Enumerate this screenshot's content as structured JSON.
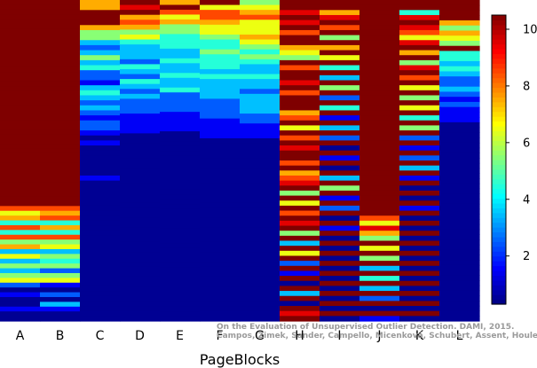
{
  "chart_data": {
    "type": "heatmap",
    "title": "",
    "xlabel": "PageBlocks",
    "ylabel": "",
    "columns": [
      "A",
      "B",
      "C",
      "D",
      "E",
      "F",
      "G",
      "H",
      "I",
      "J",
      "K",
      "L"
    ],
    "colorbar": {
      "vmin": 0.3,
      "vmax": 10.5,
      "ticks": [
        2,
        4,
        6,
        8,
        10
      ],
      "colormap": [
        "#00007f",
        "#0000ff",
        "#007fff",
        "#00ffff",
        "#7fff7f",
        "#ffff00",
        "#ff7f00",
        "#ff0000",
        "#7f0000"
      ]
    },
    "value_scale": [
      0.5,
      1.5,
      2.5,
      3.5,
      4.5,
      5.5,
      6.5,
      7.5,
      8.5,
      9.5,
      10.5
    ],
    "value_encoding": "0123456789A",
    "rows_per_column": 64,
    "cells": [
      "AAAAAAAAAAAAAAAAAAAAAAAAAAAAAAAAAAAAAAAAAAA867484857363535620100100",
      "AAAAAAAAAAAAAAAAAAAAAAAAAAAAAAAAAAAAAAAAAAA878474856354525610203100",
      "77AAA75532353422134323212210100000010000000000000000000000000000",
      "A9A78756433324324323222111100000000000000000000000000000000000000",
      "7A8675544433433433422221111000000000000000000000000000000000000000",
      "A6887665445444343333222211110000000000000000000000000000000000000",
      "56786667654543343323333221110000000000000000000000000000000000000",
      "AA9A9A8AA765A8AA9A8AAA78A6A8A9AA8A789A5A6A8A9A5A3A6A2A1A0A3A0A9A",
      "AA79A8A5A7A6A4A3A5A2A4A1A3A2A0A1A0A3A5A1A2A0A1A0A0A0A0A0A0A0A0A0",
      "AAAAAAAAAAAAAAAAAAAAAAAAAAAAAAAAAAAAAAAAAAA86975A6A5A3A4A3A2A0A1",
      "AA49A9869A7A59A8A6A5A6A4A5A2A1A2A3A1A0A0A1A0A0A0A0A0A0A0A0A0A0A0",
      "AAAA75765A44343223212111000000000000000000000000000000000000000"
    ]
  },
  "credit_text": "On the Evaluation of Unsupervised Outlier Detection. DAMI, 2015.\nCampos, Zimek, Sander, Campello, Micenková, Schubert, Assent, Houle"
}
